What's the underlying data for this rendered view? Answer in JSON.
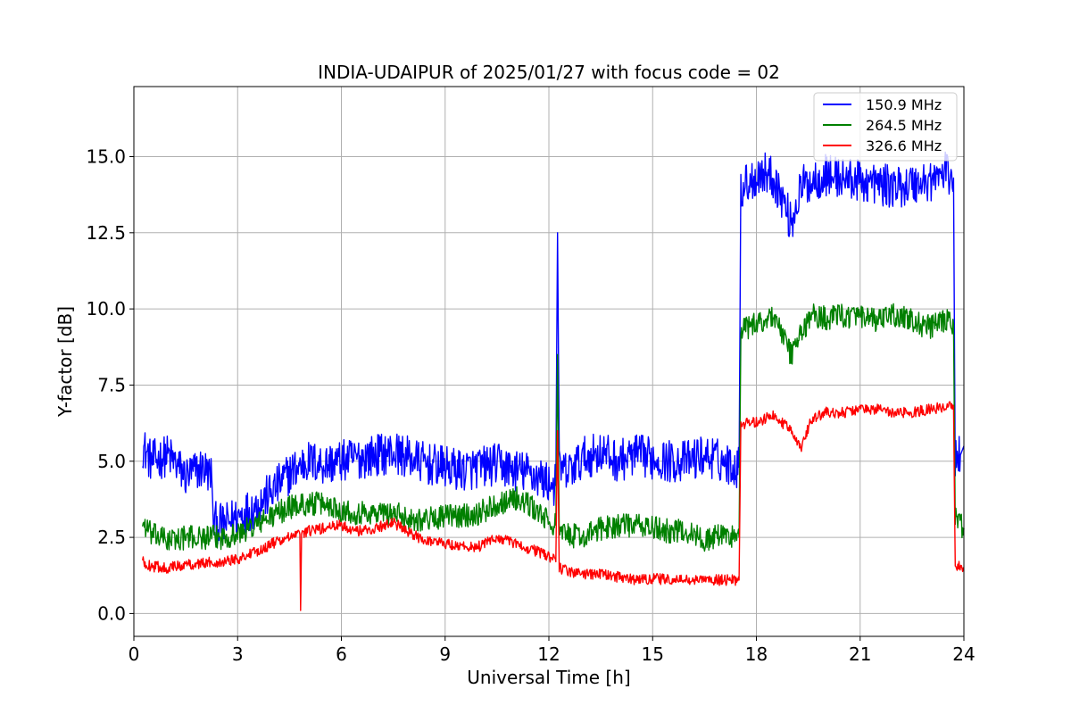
{
  "chart_data": {
    "type": "line",
    "title": "INDIA-UDAIPUR of 2025/01/27 with focus code = 02",
    "xlabel": "Universal Time [h]",
    "ylabel": "Y-factor [dB]",
    "xlim": [
      0,
      24
    ],
    "ylim": [
      -0.75,
      17.3
    ],
    "xticks": [
      0,
      3,
      6,
      9,
      12,
      15,
      18,
      21,
      24
    ],
    "xtick_labels": [
      "0",
      "3",
      "6",
      "9",
      "12",
      "15",
      "18",
      "21",
      "24"
    ],
    "yticks": [
      0.0,
      2.5,
      5.0,
      7.5,
      10.0,
      12.5,
      15.0
    ],
    "ytick_labels": [
      "0.0",
      "2.5",
      "5.0",
      "7.5",
      "10.0",
      "12.5",
      "15.0"
    ],
    "grid": true,
    "legend_position": "top-right",
    "series": [
      {
        "name": "150.9 MHz",
        "color": "#0000ff",
        "noise": 0.7,
        "x": [
          0.25,
          0.5,
          1.0,
          1.5,
          2.0,
          2.25,
          2.3,
          2.6,
          3.0,
          3.5,
          4.0,
          4.5,
          5.0,
          5.5,
          6.0,
          6.5,
          7.0,
          7.5,
          8.0,
          8.5,
          9.0,
          9.5,
          10.0,
          10.5,
          11.0,
          11.5,
          12.0,
          12.2,
          12.25,
          12.3,
          12.5,
          13.0,
          13.5,
          14.0,
          14.5,
          15.0,
          15.5,
          16.0,
          16.5,
          17.0,
          17.5,
          17.55,
          17.8,
          18.2,
          18.5,
          18.8,
          19.0,
          19.3,
          19.6,
          20.0,
          20.5,
          21.0,
          21.5,
          22.0,
          22.5,
          23.0,
          23.5,
          23.7,
          23.75,
          23.9,
          24.0
        ],
        "y": [
          5.5,
          5.0,
          5.2,
          4.5,
          4.8,
          4.5,
          3.0,
          2.9,
          3.2,
          3.5,
          4.0,
          4.6,
          5.0,
          4.9,
          5.0,
          5.1,
          5.2,
          5.3,
          5.1,
          4.9,
          4.8,
          4.7,
          4.8,
          4.9,
          4.7,
          4.6,
          4.3,
          4.2,
          12.5,
          4.8,
          4.6,
          5.1,
          5.3,
          5.0,
          5.2,
          5.1,
          5.0,
          5.0,
          5.2,
          5.0,
          4.8,
          14.0,
          14.2,
          14.5,
          14.3,
          13.5,
          12.8,
          14.0,
          14.2,
          14.4,
          14.3,
          14.2,
          14.1,
          14.0,
          14.1,
          14.2,
          14.5,
          14.3,
          5.0,
          5.2,
          5.5
        ]
      },
      {
        "name": "264.5 MHz",
        "color": "#008000",
        "noise": 0.4,
        "x": [
          0.25,
          0.5,
          1.0,
          1.5,
          2.0,
          2.5,
          3.0,
          3.5,
          4.0,
          4.5,
          5.0,
          5.5,
          6.0,
          6.5,
          7.0,
          7.5,
          8.0,
          8.5,
          9.0,
          9.5,
          10.0,
          10.5,
          11.0,
          11.5,
          12.0,
          12.2,
          12.25,
          12.3,
          12.5,
          13.0,
          13.5,
          14.0,
          14.5,
          15.0,
          15.5,
          16.0,
          16.5,
          17.0,
          17.5,
          17.55,
          18.0,
          18.5,
          19.0,
          19.3,
          19.6,
          20.0,
          20.5,
          21.0,
          21.5,
          22.0,
          22.5,
          23.0,
          23.5,
          23.7,
          23.75,
          24.0
        ],
        "y": [
          3.0,
          2.6,
          2.4,
          2.5,
          2.5,
          2.5,
          2.6,
          2.9,
          3.2,
          3.5,
          3.6,
          3.6,
          3.4,
          3.3,
          3.3,
          3.3,
          3.1,
          3.1,
          3.2,
          3.2,
          3.3,
          3.6,
          3.8,
          3.5,
          3.0,
          2.9,
          8.5,
          2.6,
          2.6,
          2.5,
          2.8,
          2.9,
          2.9,
          2.8,
          2.7,
          2.7,
          2.4,
          2.6,
          2.5,
          9.3,
          9.5,
          9.8,
          8.5,
          9.2,
          9.8,
          9.7,
          9.8,
          9.7,
          9.6,
          9.8,
          9.6,
          9.4,
          9.6,
          9.5,
          3.2,
          2.8
        ]
      },
      {
        "name": "326.6 MHz",
        "color": "#ff0000",
        "noise": 0.18,
        "x": [
          0.25,
          0.5,
          1.0,
          1.5,
          2.0,
          2.5,
          3.0,
          3.5,
          4.0,
          4.5,
          4.8,
          4.82,
          4.85,
          5.0,
          5.5,
          6.0,
          6.5,
          7.0,
          7.5,
          8.0,
          8.5,
          9.0,
          9.5,
          10.0,
          10.5,
          11.0,
          11.5,
          12.0,
          12.2,
          12.25,
          12.3,
          12.5,
          13.0,
          13.5,
          14.0,
          14.5,
          15.0,
          15.5,
          16.0,
          16.5,
          17.0,
          17.5,
          17.55,
          18.0,
          18.5,
          19.0,
          19.3,
          19.6,
          20.0,
          20.5,
          21.0,
          21.5,
          22.0,
          22.5,
          23.0,
          23.5,
          23.7,
          23.75,
          24.0
        ],
        "y": [
          1.7,
          1.55,
          1.5,
          1.6,
          1.65,
          1.7,
          1.8,
          2.0,
          2.3,
          2.5,
          2.6,
          0.1,
          2.6,
          2.7,
          2.8,
          2.9,
          2.7,
          2.8,
          3.0,
          2.6,
          2.4,
          2.3,
          2.2,
          2.2,
          2.5,
          2.3,
          2.1,
          1.9,
          1.7,
          6.0,
          1.5,
          1.4,
          1.3,
          1.3,
          1.2,
          1.1,
          1.15,
          1.1,
          1.1,
          1.1,
          1.1,
          1.1,
          6.2,
          6.3,
          6.5,
          6.0,
          5.5,
          6.4,
          6.6,
          6.6,
          6.7,
          6.7,
          6.6,
          6.6,
          6.7,
          6.8,
          6.8,
          1.6,
          1.5
        ]
      }
    ]
  }
}
